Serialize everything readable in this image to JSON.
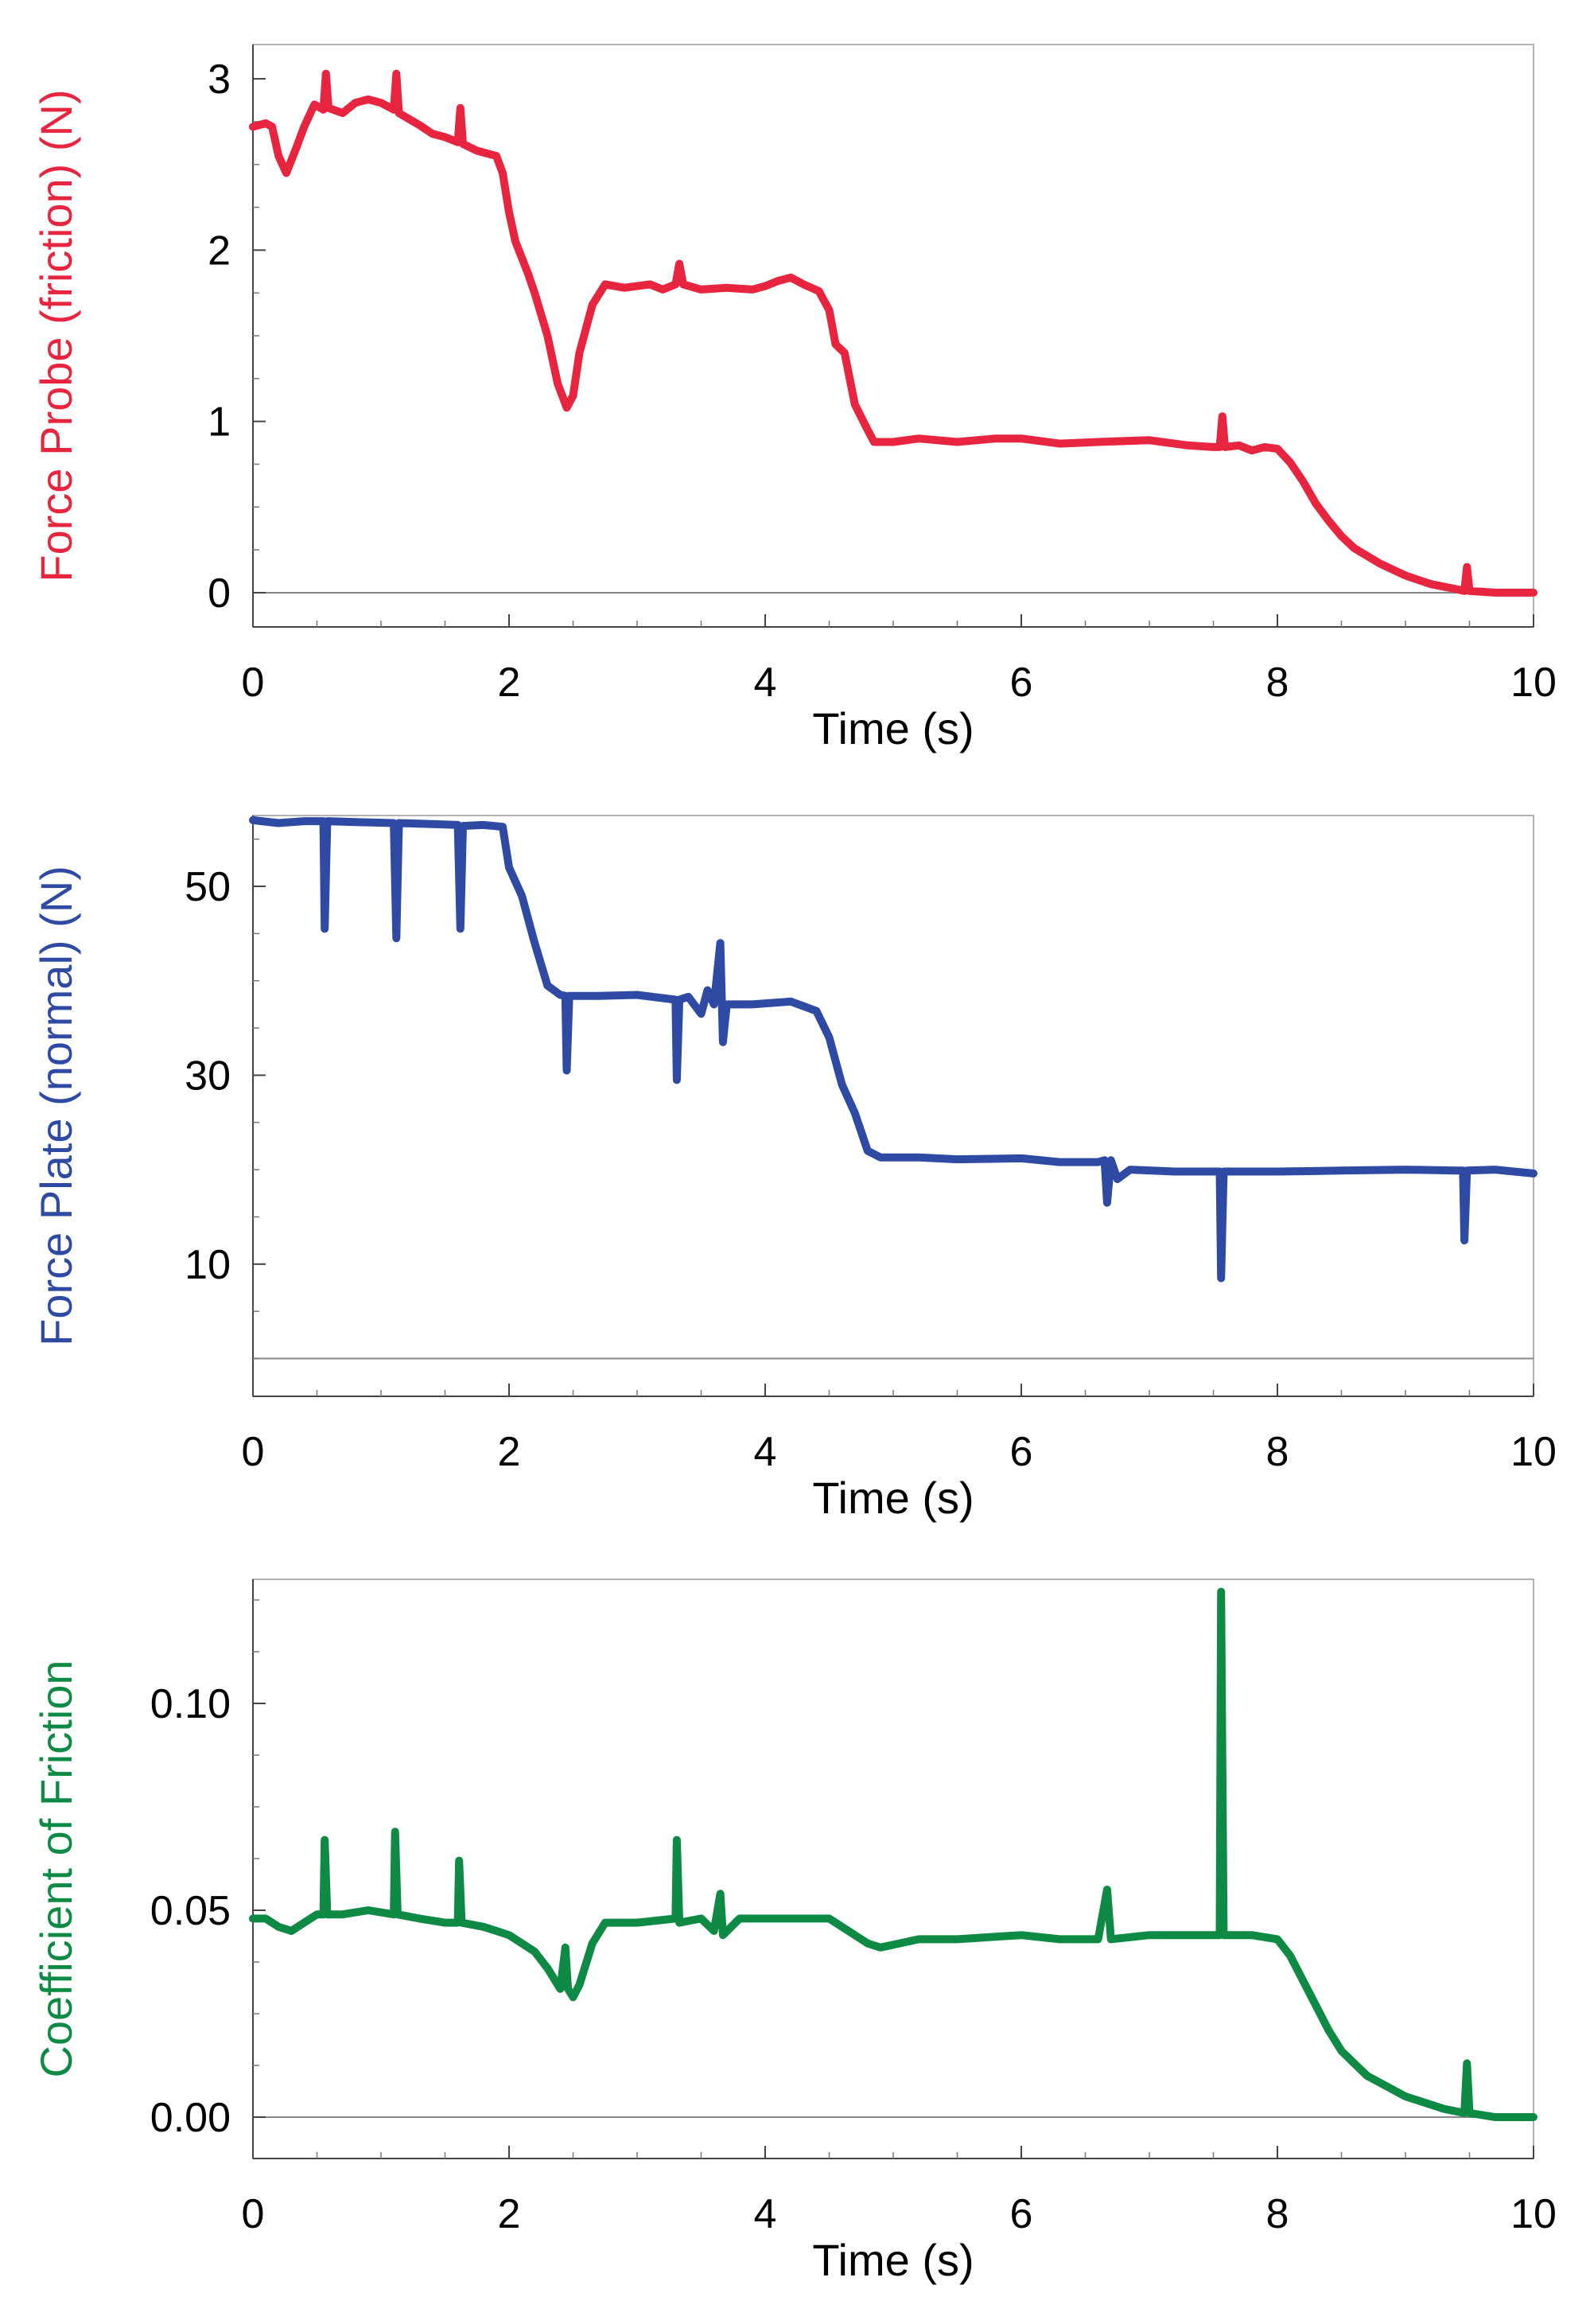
{
  "chart_data": [
    {
      "type": "line",
      "ylabel": "Force Probe (friction) (N)",
      "xlabel": "Time (s)",
      "xlim": [
        0,
        10
      ],
      "ylim": [
        -0.2,
        3.2
      ],
      "x_ticks": [
        "0",
        "2",
        "4",
        "6",
        "8",
        "10"
      ],
      "y_ticks": [
        "0",
        "1",
        "2",
        "3"
      ],
      "zero_line": 0,
      "color": "#e8253f",
      "series": [
        {
          "name": "Force Probe (friction)",
          "points": [
            [
              0,
              2.72
            ],
            [
              0.1,
              2.74
            ],
            [
              0.15,
              2.72
            ],
            [
              0.2,
              2.55
            ],
            [
              0.26,
              2.45
            ],
            [
              0.33,
              2.58
            ],
            [
              0.4,
              2.72
            ],
            [
              0.48,
              2.85
            ],
            [
              0.55,
              2.82
            ],
            [
              0.57,
              3.03
            ],
            [
              0.59,
              2.83
            ],
            [
              0.7,
              2.8
            ],
            [
              0.8,
              2.86
            ],
            [
              0.9,
              2.88
            ],
            [
              1.0,
              2.86
            ],
            [
              1.1,
              2.82
            ],
            [
              1.12,
              3.03
            ],
            [
              1.14,
              2.8
            ],
            [
              1.3,
              2.73
            ],
            [
              1.4,
              2.68
            ],
            [
              1.5,
              2.66
            ],
            [
              1.6,
              2.63
            ],
            [
              1.62,
              2.83
            ],
            [
              1.64,
              2.62
            ],
            [
              1.75,
              2.58
            ],
            [
              1.85,
              2.56
            ],
            [
              1.9,
              2.55
            ],
            [
              1.95,
              2.45
            ],
            [
              2.0,
              2.22
            ],
            [
              2.05,
              2.05
            ],
            [
              2.15,
              1.86
            ],
            [
              2.2,
              1.75
            ],
            [
              2.3,
              1.5
            ],
            [
              2.38,
              1.22
            ],
            [
              2.45,
              1.08
            ],
            [
              2.5,
              1.15
            ],
            [
              2.55,
              1.4
            ],
            [
              2.65,
              1.68
            ],
            [
              2.75,
              1.8
            ],
            [
              2.9,
              1.78
            ],
            [
              3.1,
              1.8
            ],
            [
              3.2,
              1.77
            ],
            [
              3.3,
              1.8
            ],
            [
              3.33,
              1.92
            ],
            [
              3.36,
              1.8
            ],
            [
              3.5,
              1.77
            ],
            [
              3.7,
              1.78
            ],
            [
              3.9,
              1.77
            ],
            [
              4.0,
              1.79
            ],
            [
              4.1,
              1.82
            ],
            [
              4.2,
              1.84
            ],
            [
              4.3,
              1.8
            ],
            [
              4.42,
              1.76
            ],
            [
              4.5,
              1.65
            ],
            [
              4.55,
              1.45
            ],
            [
              4.62,
              1.4
            ],
            [
              4.7,
              1.1
            ],
            [
              4.78,
              0.98
            ],
            [
              4.85,
              0.88
            ],
            [
              5.0,
              0.88
            ],
            [
              5.2,
              0.9
            ],
            [
              5.5,
              0.88
            ],
            [
              5.8,
              0.9
            ],
            [
              6.0,
              0.9
            ],
            [
              6.3,
              0.87
            ],
            [
              6.6,
              0.88
            ],
            [
              7.0,
              0.89
            ],
            [
              7.3,
              0.86
            ],
            [
              7.5,
              0.85
            ],
            [
              7.55,
              0.85
            ],
            [
              7.57,
              1.03
            ],
            [
              7.59,
              0.85
            ],
            [
              7.7,
              0.86
            ],
            [
              7.8,
              0.83
            ],
            [
              7.9,
              0.85
            ],
            [
              8.0,
              0.84
            ],
            [
              8.1,
              0.76
            ],
            [
              8.2,
              0.65
            ],
            [
              8.3,
              0.52
            ],
            [
              8.4,
              0.42
            ],
            [
              8.5,
              0.33
            ],
            [
              8.6,
              0.26
            ],
            [
              8.8,
              0.17
            ],
            [
              9.0,
              0.1
            ],
            [
              9.2,
              0.05
            ],
            [
              9.4,
              0.02
            ],
            [
              9.46,
              0.01
            ],
            [
              9.48,
              0.15
            ],
            [
              9.5,
              0.01
            ],
            [
              9.7,
              0.0
            ],
            [
              10.0,
              0.0
            ]
          ]
        }
      ]
    },
    {
      "type": "line",
      "ylabel": "Force Plate (normal) (N)",
      "xlabel": "Time (s)",
      "xlim": [
        0,
        10
      ],
      "ylim": [
        -4,
        57.5
      ],
      "x_ticks": [
        "0",
        "2",
        "4",
        "6",
        "8",
        "10"
      ],
      "y_ticks": [
        "10",
        "30",
        "50"
      ],
      "zero_line": 0,
      "color": "#2f4aa3",
      "series": [
        {
          "name": "Force Plate (normal)",
          "points": [
            [
              0,
              57.0
            ],
            [
              0.2,
              56.7
            ],
            [
              0.4,
              56.9
            ],
            [
              0.55,
              56.9
            ],
            [
              0.56,
              45.5
            ],
            [
              0.58,
              56.9
            ],
            [
              0.8,
              56.8
            ],
            [
              1.1,
              56.7
            ],
            [
              1.12,
              44.5
            ],
            [
              1.14,
              56.7
            ],
            [
              1.4,
              56.6
            ],
            [
              1.6,
              56.5
            ],
            [
              1.62,
              45.5
            ],
            [
              1.64,
              56.4
            ],
            [
              1.8,
              56.5
            ],
            [
              1.95,
              56.3
            ],
            [
              2.0,
              52.0
            ],
            [
              2.1,
              49.0
            ],
            [
              2.2,
              44.0
            ],
            [
              2.3,
              39.5
            ],
            [
              2.4,
              38.5
            ],
            [
              2.44,
              38.4
            ],
            [
              2.45,
              30.5
            ],
            [
              2.47,
              38.4
            ],
            [
              2.7,
              38.4
            ],
            [
              3.0,
              38.5
            ],
            [
              3.3,
              38.0
            ],
            [
              3.31,
              29.5
            ],
            [
              3.33,
              38.0
            ],
            [
              3.4,
              38.3
            ],
            [
              3.5,
              36.5
            ],
            [
              3.55,
              39.0
            ],
            [
              3.6,
              37.5
            ],
            [
              3.65,
              44.0
            ],
            [
              3.67,
              33.5
            ],
            [
              3.7,
              37.5
            ],
            [
              3.9,
              37.5
            ],
            [
              4.2,
              37.8
            ],
            [
              4.4,
              36.8
            ],
            [
              4.5,
              34.0
            ],
            [
              4.6,
              29.0
            ],
            [
              4.7,
              26.0
            ],
            [
              4.8,
              22.0
            ],
            [
              4.9,
              21.3
            ],
            [
              5.2,
              21.3
            ],
            [
              5.5,
              21.1
            ],
            [
              6.0,
              21.2
            ],
            [
              6.3,
              20.8
            ],
            [
              6.6,
              20.8
            ],
            [
              6.65,
              21.0
            ],
            [
              6.67,
              16.5
            ],
            [
              6.7,
              21.0
            ],
            [
              6.75,
              19.0
            ],
            [
              6.85,
              20.0
            ],
            [
              7.2,
              19.8
            ],
            [
              7.5,
              19.8
            ],
            [
              7.55,
              19.8
            ],
            [
              7.56,
              8.5
            ],
            [
              7.58,
              19.8
            ],
            [
              8.0,
              19.8
            ],
            [
              8.5,
              19.9
            ],
            [
              9.0,
              20.0
            ],
            [
              9.4,
              19.9
            ],
            [
              9.45,
              19.9
            ],
            [
              9.46,
              12.5
            ],
            [
              9.48,
              19.9
            ],
            [
              9.7,
              20.0
            ],
            [
              10.0,
              19.6
            ]
          ]
        }
      ]
    },
    {
      "type": "line",
      "ylabel": "Coefficient of Friction",
      "xlabel": "Time (s)",
      "xlim": [
        0,
        10
      ],
      "ylim": [
        -0.01,
        0.13
      ],
      "x_ticks": [
        "0",
        "2",
        "4",
        "6",
        "8",
        "10"
      ],
      "y_ticks": [
        "0.00",
        "0.05",
        "0.10"
      ],
      "zero_line": 0,
      "color": "#0f8a45",
      "series": [
        {
          "name": "Coefficient of Friction",
          "points": [
            [
              0,
              0.048
            ],
            [
              0.1,
              0.048
            ],
            [
              0.2,
              0.046
            ],
            [
              0.3,
              0.045
            ],
            [
              0.4,
              0.047
            ],
            [
              0.5,
              0.049
            ],
            [
              0.55,
              0.049
            ],
            [
              0.56,
              0.067
            ],
            [
              0.58,
              0.049
            ],
            [
              0.7,
              0.049
            ],
            [
              0.9,
              0.05
            ],
            [
              1.1,
              0.049
            ],
            [
              1.11,
              0.069
            ],
            [
              1.13,
              0.049
            ],
            [
              1.3,
              0.048
            ],
            [
              1.5,
              0.047
            ],
            [
              1.6,
              0.047
            ],
            [
              1.61,
              0.062
            ],
            [
              1.63,
              0.047
            ],
            [
              1.8,
              0.046
            ],
            [
              2.0,
              0.044
            ],
            [
              2.1,
              0.042
            ],
            [
              2.2,
              0.04
            ],
            [
              2.3,
              0.036
            ],
            [
              2.4,
              0.031
            ],
            [
              2.44,
              0.041
            ],
            [
              2.46,
              0.031
            ],
            [
              2.5,
              0.029
            ],
            [
              2.55,
              0.032
            ],
            [
              2.65,
              0.042
            ],
            [
              2.75,
              0.047
            ],
            [
              3.0,
              0.047
            ],
            [
              3.3,
              0.048
            ],
            [
              3.31,
              0.067
            ],
            [
              3.33,
              0.047
            ],
            [
              3.5,
              0.048
            ],
            [
              3.6,
              0.045
            ],
            [
              3.65,
              0.054
            ],
            [
              3.67,
              0.044
            ],
            [
              3.8,
              0.048
            ],
            [
              4.2,
              0.048
            ],
            [
              4.5,
              0.048
            ],
            [
              4.7,
              0.044
            ],
            [
              4.8,
              0.042
            ],
            [
              4.9,
              0.041
            ],
            [
              5.2,
              0.043
            ],
            [
              5.5,
              0.043
            ],
            [
              6.0,
              0.044
            ],
            [
              6.3,
              0.043
            ],
            [
              6.6,
              0.043
            ],
            [
              6.67,
              0.055
            ],
            [
              6.7,
              0.043
            ],
            [
              7.0,
              0.044
            ],
            [
              7.3,
              0.044
            ],
            [
              7.5,
              0.044
            ],
            [
              7.55,
              0.044
            ],
            [
              7.56,
              0.127
            ],
            [
              7.58,
              0.044
            ],
            [
              7.8,
              0.044
            ],
            [
              8.0,
              0.043
            ],
            [
              8.1,
              0.039
            ],
            [
              8.2,
              0.033
            ],
            [
              8.3,
              0.027
            ],
            [
              8.4,
              0.021
            ],
            [
              8.5,
              0.016
            ],
            [
              8.7,
              0.01
            ],
            [
              9.0,
              0.005
            ],
            [
              9.3,
              0.002
            ],
            [
              9.46,
              0.001
            ],
            [
              9.48,
              0.013
            ],
            [
              9.5,
              0.001
            ],
            [
              9.7,
              0.0
            ],
            [
              10.0,
              0.0
            ]
          ]
        }
      ]
    }
  ]
}
